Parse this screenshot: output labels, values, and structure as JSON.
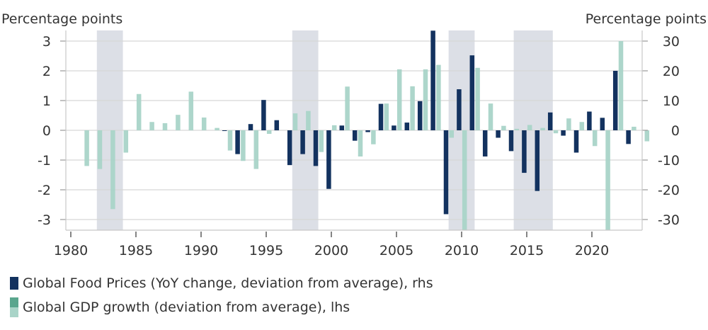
{
  "chart_data": {
    "type": "bar",
    "title": "",
    "left_axis_label": "Percentage points",
    "right_axis_label": "Percentage points",
    "left_ylim": [
      -3.3,
      3.3
    ],
    "right_ylim": [
      -33,
      33
    ],
    "left_ticks": [
      "3",
      "2",
      "1",
      "0",
      "-1",
      "-2",
      "-3"
    ],
    "left_tick_values": [
      3,
      2,
      1,
      0,
      -1,
      -2,
      -3
    ],
    "right_ticks": [
      "30",
      "20",
      "10",
      "0",
      "-10",
      "-20",
      "-30"
    ],
    "right_tick_values": [
      30,
      20,
      10,
      0,
      -10,
      -20,
      -30
    ],
    "x_ticks": [
      "1980",
      "1985",
      "1990",
      "1995",
      "2000",
      "2005",
      "2010",
      "2015",
      "2020"
    ],
    "x_tick_values": [
      1980,
      1985,
      1990,
      1995,
      2000,
      2005,
      2010,
      2015,
      2020
    ],
    "xlim": [
      1979.2,
      2024.8
    ],
    "grid": true,
    "shaded_periods": [
      [
        1982,
        1984
      ],
      [
        1997,
        1999
      ],
      [
        2009,
        2011
      ],
      [
        2014,
        2017
      ]
    ],
    "shaded_color": "#dcdfe6",
    "series": [
      {
        "name": "Global Food Prices (YoY change, deviation from average), rhs",
        "axis": "right",
        "color": "#13325f",
        "years": [
          1992,
          1993,
          1994,
          1995,
          1996,
          1997,
          1998,
          1999,
          2000,
          2001,
          2002,
          2003,
          2004,
          2005,
          2006,
          2007,
          2008,
          2009,
          2010,
          2011,
          2012,
          2013,
          2014,
          2015,
          2016,
          2017,
          2018,
          2019,
          2020,
          2021,
          2022,
          2023
        ],
        "values": [
          -0.1,
          -8.0,
          2.1,
          10.2,
          3.4,
          -11.7,
          -8.0,
          -12.0,
          -19.7,
          1.6,
          -3.5,
          -0.6,
          8.9,
          1.6,
          2.6,
          9.8,
          33.5,
          -28.2,
          13.8,
          25.2,
          -8.8,
          -2.5,
          -7.0,
          -14.3,
          -20.4,
          6.0,
          -1.8,
          -7.5,
          6.3,
          4.2,
          20.0,
          -4.6
        ]
      },
      {
        "name": "Global GDP growth (deviation from average), lhs",
        "axis": "left",
        "color": "#a9d4c8",
        "color_alt": "#5aa68e",
        "years": [
          1981,
          1982,
          1983,
          1984,
          1985,
          1986,
          1987,
          1988,
          1989,
          1990,
          1991,
          1992,
          1993,
          1994,
          1995,
          1997,
          1998,
          1999,
          2000,
          2001,
          2002,
          2003,
          2004,
          2005,
          2006,
          2007,
          2008,
          2009,
          2010,
          2011,
          2012,
          2013,
          2014,
          2015,
          2016,
          2017,
          2018,
          2019,
          2020,
          2021,
          2022,
          2023,
          2024
        ],
        "values": [
          -1.2,
          -1.3,
          -2.65,
          -0.75,
          1.22,
          0.28,
          0.24,
          0.52,
          1.3,
          0.43,
          0.08,
          -0.68,
          -1.03,
          -1.3,
          -0.12,
          0.57,
          0.65,
          -0.73,
          0.17,
          1.47,
          -0.88,
          -0.47,
          0.9,
          2.05,
          1.48,
          2.05,
          2.2,
          -0.25,
          -3.4,
          2.1,
          0.9,
          0.15,
          0.05,
          0.18,
          0.08,
          -0.1,
          0.4,
          0.28,
          -0.53,
          -3.4,
          3.0,
          0.12,
          -0.37
        ]
      }
    ]
  },
  "legend": {
    "food_label": "Global Food Prices (YoY change, deviation from average), rhs",
    "gdp_label": "Global GDP growth (deviation from average), lhs"
  }
}
